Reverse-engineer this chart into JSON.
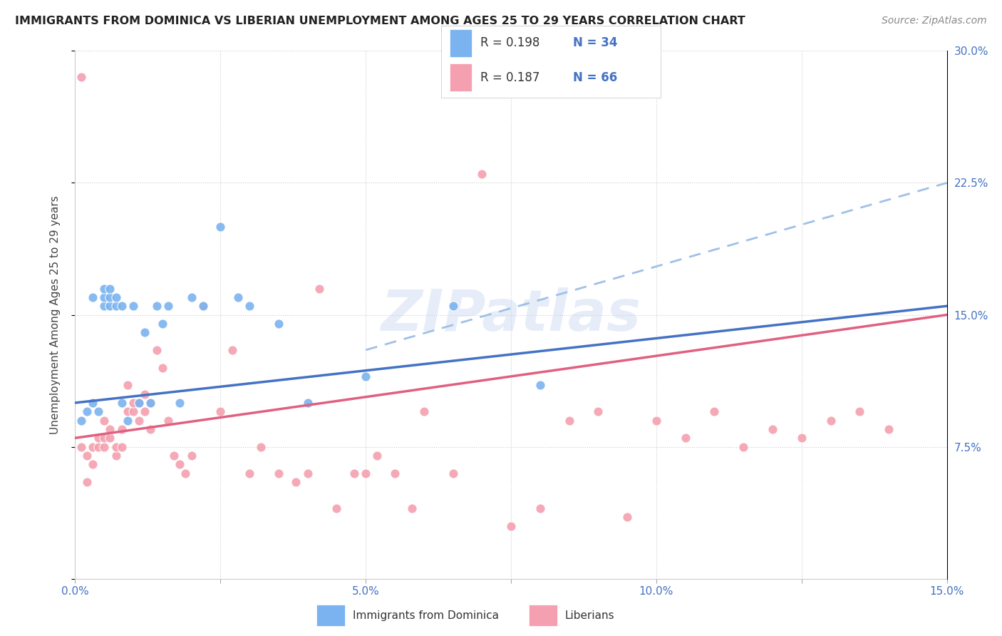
{
  "title": "IMMIGRANTS FROM DOMINICA VS LIBERIAN UNEMPLOYMENT AMONG AGES 25 TO 29 YEARS CORRELATION CHART",
  "source": "Source: ZipAtlas.com",
  "ylabel": "Unemployment Among Ages 25 to 29 years",
  "xlim": [
    0.0,
    0.15
  ],
  "ylim": [
    0.0,
    0.3
  ],
  "legend1_R": "0.198",
  "legend1_N": "34",
  "legend2_R": "0.187",
  "legend2_N": "66",
  "blue_scatter_color": "#7ab3ef",
  "pink_scatter_color": "#f4a0b0",
  "blue_line_color": "#4472c4",
  "pink_line_color": "#e06080",
  "blue_dash_color": "#a0c0e8",
  "watermark": "ZIPatlas",
  "dominica_x": [
    0.001,
    0.002,
    0.003,
    0.003,
    0.004,
    0.005,
    0.005,
    0.005,
    0.006,
    0.006,
    0.006,
    0.007,
    0.007,
    0.008,
    0.008,
    0.009,
    0.01,
    0.011,
    0.012,
    0.013,
    0.014,
    0.015,
    0.016,
    0.018,
    0.02,
    0.022,
    0.025,
    0.028,
    0.03,
    0.035,
    0.04,
    0.05,
    0.065,
    0.08
  ],
  "dominica_y": [
    0.09,
    0.095,
    0.1,
    0.16,
    0.095,
    0.155,
    0.16,
    0.165,
    0.155,
    0.16,
    0.165,
    0.155,
    0.16,
    0.155,
    0.1,
    0.09,
    0.155,
    0.1,
    0.14,
    0.1,
    0.155,
    0.145,
    0.155,
    0.1,
    0.16,
    0.155,
    0.2,
    0.16,
    0.155,
    0.145,
    0.1,
    0.115,
    0.155,
    0.11
  ],
  "liberian_x": [
    0.001,
    0.001,
    0.002,
    0.002,
    0.003,
    0.003,
    0.004,
    0.004,
    0.005,
    0.005,
    0.005,
    0.006,
    0.006,
    0.007,
    0.007,
    0.008,
    0.008,
    0.009,
    0.009,
    0.01,
    0.01,
    0.011,
    0.011,
    0.012,
    0.012,
    0.013,
    0.013,
    0.014,
    0.015,
    0.016,
    0.017,
    0.018,
    0.019,
    0.02,
    0.022,
    0.025,
    0.027,
    0.03,
    0.032,
    0.035,
    0.038,
    0.04,
    0.042,
    0.045,
    0.048,
    0.05,
    0.052,
    0.055,
    0.058,
    0.06,
    0.065,
    0.07,
    0.075,
    0.08,
    0.085,
    0.09,
    0.095,
    0.1,
    0.105,
    0.11,
    0.115,
    0.12,
    0.125,
    0.13,
    0.135,
    0.14
  ],
  "liberian_y": [
    0.285,
    0.075,
    0.055,
    0.07,
    0.065,
    0.075,
    0.075,
    0.08,
    0.075,
    0.08,
    0.09,
    0.08,
    0.085,
    0.07,
    0.075,
    0.075,
    0.085,
    0.095,
    0.11,
    0.095,
    0.1,
    0.09,
    0.1,
    0.095,
    0.105,
    0.085,
    0.1,
    0.13,
    0.12,
    0.09,
    0.07,
    0.065,
    0.06,
    0.07,
    0.155,
    0.095,
    0.13,
    0.06,
    0.075,
    0.06,
    0.055,
    0.06,
    0.165,
    0.04,
    0.06,
    0.06,
    0.07,
    0.06,
    0.04,
    0.095,
    0.06,
    0.23,
    0.03,
    0.04,
    0.09,
    0.095,
    0.035,
    0.09,
    0.08,
    0.095,
    0.075,
    0.085,
    0.08,
    0.09,
    0.095,
    0.085
  ]
}
